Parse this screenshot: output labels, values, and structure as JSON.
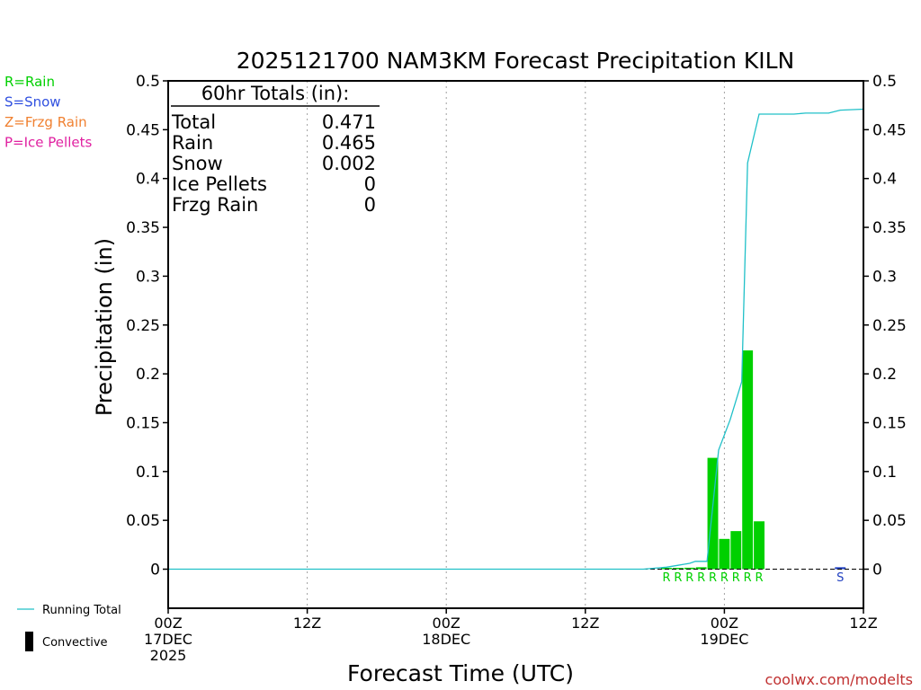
{
  "chart_data": {
    "type": "bar",
    "title": "2025121700 NAM3KM Forecast Precipitation KILN",
    "xlabel": "Forecast Time (UTC)",
    "ylabel": "Precipitation (in)",
    "ylim": [
      -0.04,
      0.5
    ],
    "xlim_hours": [
      0,
      60
    ],
    "yticks": [
      0,
      0.05,
      0.1,
      0.15,
      0.2,
      0.25,
      0.3,
      0.35,
      0.4,
      0.45,
      0.5
    ],
    "ytick_labels": [
      "0",
      "0.05",
      "0.1",
      "0.15",
      "0.2",
      "0.25",
      "0.3",
      "0.35",
      "0.4",
      "0.45",
      "0.5"
    ],
    "xticks": [
      {
        "hour": 0,
        "lines": [
          "00Z",
          "17DEC",
          "2025"
        ]
      },
      {
        "hour": 12,
        "lines": [
          "12Z"
        ]
      },
      {
        "hour": 24,
        "lines": [
          "00Z",
          "18DEC"
        ]
      },
      {
        "hour": 36,
        "lines": [
          "12Z"
        ]
      },
      {
        "hour": 48,
        "lines": [
          "00Z",
          "19DEC"
        ]
      },
      {
        "hour": 60,
        "lines": [
          "12Z"
        ]
      }
    ],
    "vertical_grid_hours": [
      12,
      24,
      36,
      48
    ],
    "type_legend": [
      {
        "text": "R=Rain",
        "color": "#00d000"
      },
      {
        "text": "S=Snow",
        "color": "#3050e0"
      },
      {
        "text": "Z=Frzg Rain",
        "color": "#f08030"
      },
      {
        "text": "P=Ice Pellets",
        "color": "#e020a0"
      }
    ],
    "totals_box": {
      "header": "60hr Totals (in):",
      "rows": [
        {
          "label": "Total",
          "value": "0.471"
        },
        {
          "label": "Rain",
          "value": "0.465"
        },
        {
          "label": "Snow",
          "value": "0.002"
        },
        {
          "label": "Ice Pellets",
          "value": "0"
        },
        {
          "label": "Frzg Rain",
          "value": "0"
        }
      ]
    },
    "bars": [
      {
        "hour": 43,
        "value": 0.0005,
        "ptype": "R",
        "color": "#00d000"
      },
      {
        "hour": 44,
        "value": 0.001,
        "ptype": "R",
        "color": "#00d000"
      },
      {
        "hour": 45,
        "value": 0.0015,
        "ptype": "R",
        "color": "#00d000"
      },
      {
        "hour": 46,
        "value": 0.002,
        "ptype": "R",
        "color": "#00d000"
      },
      {
        "hour": 47,
        "value": 0.114,
        "ptype": "R",
        "color": "#00d000"
      },
      {
        "hour": 48,
        "value": 0.031,
        "ptype": "R",
        "color": "#00d000"
      },
      {
        "hour": 49,
        "value": 0.039,
        "ptype": "R",
        "color": "#00d000"
      },
      {
        "hour": 50,
        "value": 0.224,
        "ptype": "R",
        "color": "#00d000"
      },
      {
        "hour": 51,
        "value": 0.049,
        "ptype": "R",
        "color": "#00d000"
      },
      {
        "hour": 58,
        "value": 0.002,
        "ptype": "S",
        "color": "#2040c0"
      }
    ],
    "running_total": {
      "name": "Running Total",
      "color": "#20c0c8",
      "points": [
        [
          0,
          0
        ],
        [
          41,
          0
        ],
        [
          42,
          0.001
        ],
        [
          43,
          0.002
        ],
        [
          44,
          0.004
        ],
        [
          45,
          0.006
        ],
        [
          45.5,
          0.008
        ],
        [
          46.5,
          0.008
        ],
        [
          47.5,
          0.122
        ],
        [
          48.5,
          0.153
        ],
        [
          49.5,
          0.192
        ],
        [
          50,
          0.416
        ],
        [
          51,
          0.466
        ],
        [
          52,
          0.466
        ],
        [
          54,
          0.466
        ],
        [
          55,
          0.467
        ],
        [
          57,
          0.467
        ],
        [
          58,
          0.47
        ],
        [
          60,
          0.471
        ]
      ]
    },
    "series_legend": [
      {
        "text": "Running Total",
        "symbol": "line",
        "color": "#20c0c8"
      },
      {
        "text": "Convective",
        "symbol": "bar",
        "color": "#000000"
      }
    ],
    "credit": "coolwx.com/modelts",
    "colors": {
      "axis": "#000000",
      "grid": "#a0a0a0",
      "credit": "#c03030"
    }
  }
}
